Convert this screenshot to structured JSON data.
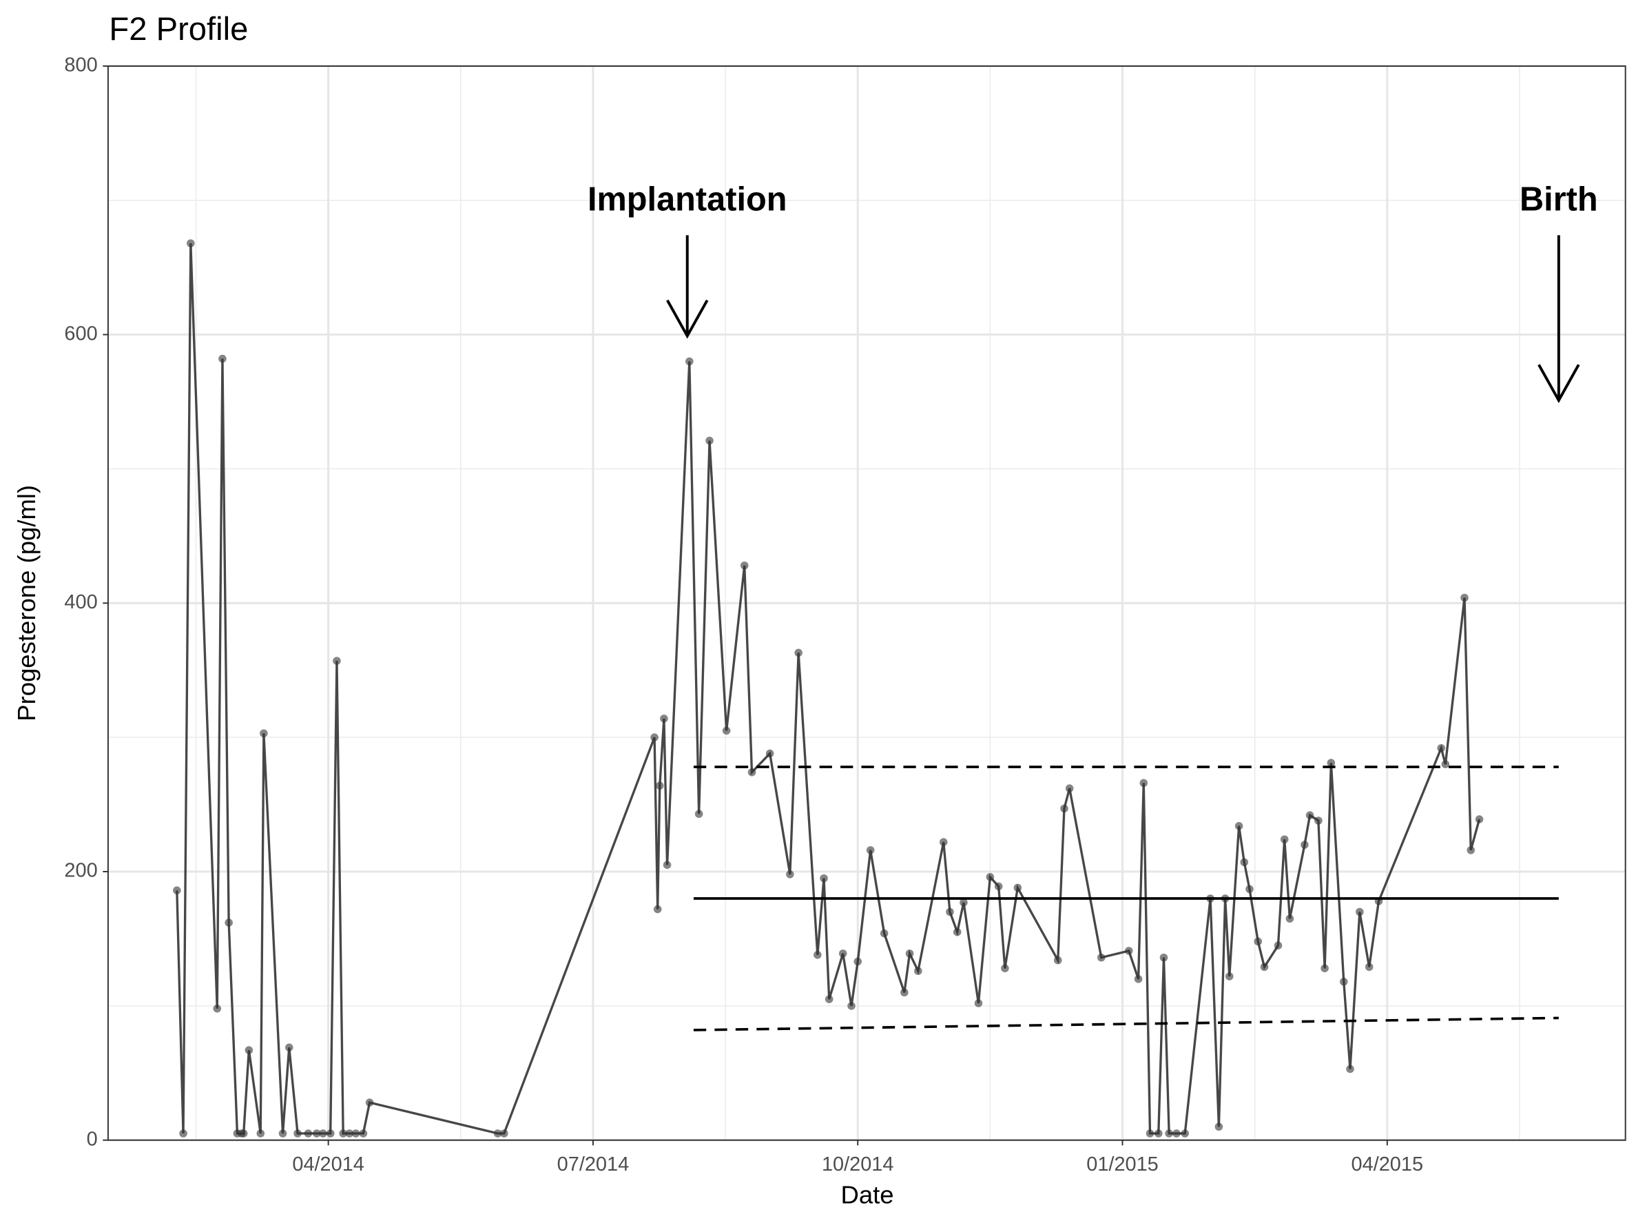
{
  "chart_data": {
    "type": "line",
    "title": "F2 Profile",
    "x_label": "Date",
    "y_label": "Progesterone (pg/ml)",
    "x": [
      2014.107,
      2014.113,
      2014.12,
      2014.145,
      2014.15,
      2014.156,
      2014.164,
      2014.168,
      2014.17,
      2014.175,
      2014.186,
      2014.189,
      2014.207,
      2014.213,
      2014.221,
      2014.231,
      2014.239,
      2014.245,
      2014.252,
      2014.258,
      2014.264,
      2014.27,
      2014.276,
      2014.283,
      2014.289,
      2014.41,
      2014.416,
      2014.558,
      2014.561,
      2014.563,
      2014.567,
      2014.57,
      2014.591,
      2014.6,
      2014.61,
      2014.626,
      2014.643,
      2014.65,
      2014.667,
      2014.686,
      2014.694,
      2014.712,
      2014.718,
      2014.723,
      2014.736,
      2014.744,
      2014.75,
      2014.762,
      2014.775,
      2014.794,
      2014.799,
      2014.807,
      2014.831,
      2014.837,
      2014.844,
      2014.85,
      2014.864,
      2014.875,
      2014.883,
      2014.889,
      2014.901,
      2014.939,
      2014.945,
      2014.95,
      2014.98,
      2015.006,
      2015.015,
      2015.02,
      2015.026,
      2015.034,
      2015.039,
      2015.044,
      2015.051,
      2015.059,
      2015.083,
      2015.091,
      2015.097,
      2015.101,
      2015.11,
      2015.115,
      2015.12,
      2015.128,
      2015.134,
      2015.147,
      2015.153,
      2015.158,
      2015.172,
      2015.177,
      2015.185,
      2015.191,
      2015.197,
      2015.209,
      2015.215,
      2015.224,
      2015.233,
      2015.242,
      2015.301,
      2015.305,
      2015.323,
      2015.329,
      2015.337
    ],
    "series": [
      {
        "color": "#333333",
        "values": [
          186,
          5,
          668,
          98,
          582,
          162,
          5,
          5,
          5,
          67,
          5,
          303,
          5,
          69,
          5,
          5,
          5,
          5,
          5,
          357,
          5,
          5,
          5,
          5,
          28,
          5,
          5,
          300,
          172,
          264,
          314,
          205,
          580,
          243,
          521,
          305,
          428,
          274,
          288,
          198,
          363,
          138,
          195,
          105,
          139,
          100,
          133,
          216,
          154,
          110,
          139,
          126,
          222,
          170,
          155,
          177,
          102,
          196,
          189,
          128,
          188,
          134,
          247,
          262,
          136,
          141,
          120,
          266,
          5,
          5,
          136,
          5,
          5,
          5,
          180,
          10,
          180,
          122,
          234,
          207,
          187,
          148,
          129,
          145,
          224,
          165,
          220,
          242,
          238,
          128,
          281,
          118,
          53,
          170,
          129,
          178,
          292,
          280,
          404,
          216,
          239
        ]
      }
    ],
    "xlim": [
      2014.042,
      2015.475
    ],
    "ylim": [
      0,
      800
    ],
    "xticks": [
      {
        "value": 2014.25,
        "label": "04/2014"
      },
      {
        "value": 2014.5,
        "label": "07/2014"
      },
      {
        "value": 2014.75,
        "label": "10/2014"
      },
      {
        "value": 2015.0,
        "label": "01/2015"
      },
      {
        "value": 2015.25,
        "label": "04/2015"
      }
    ],
    "yticks": [
      0,
      200,
      400,
      600,
      800
    ],
    "grid": true,
    "reference_lines": [
      {
        "x": [
          2014.595,
          2015.412
        ],
        "values": [
          180,
          180
        ],
        "dashed": false
      },
      {
        "x": [
          2014.595,
          2015.412
        ],
        "values": [
          278,
          278
        ],
        "dashed": true
      },
      {
        "x": [
          2014.595,
          2015.412
        ],
        "values": [
          82,
          91
        ],
        "dashed": true
      }
    ],
    "annotations": [
      {
        "text": "Implantation",
        "x": 2014.589,
        "y": 699,
        "arrow_y": [
          674,
          599
        ]
      },
      {
        "text": "Birth",
        "x": 2015.412,
        "y": 699,
        "arrow_y": [
          674,
          551
        ]
      }
    ]
  }
}
